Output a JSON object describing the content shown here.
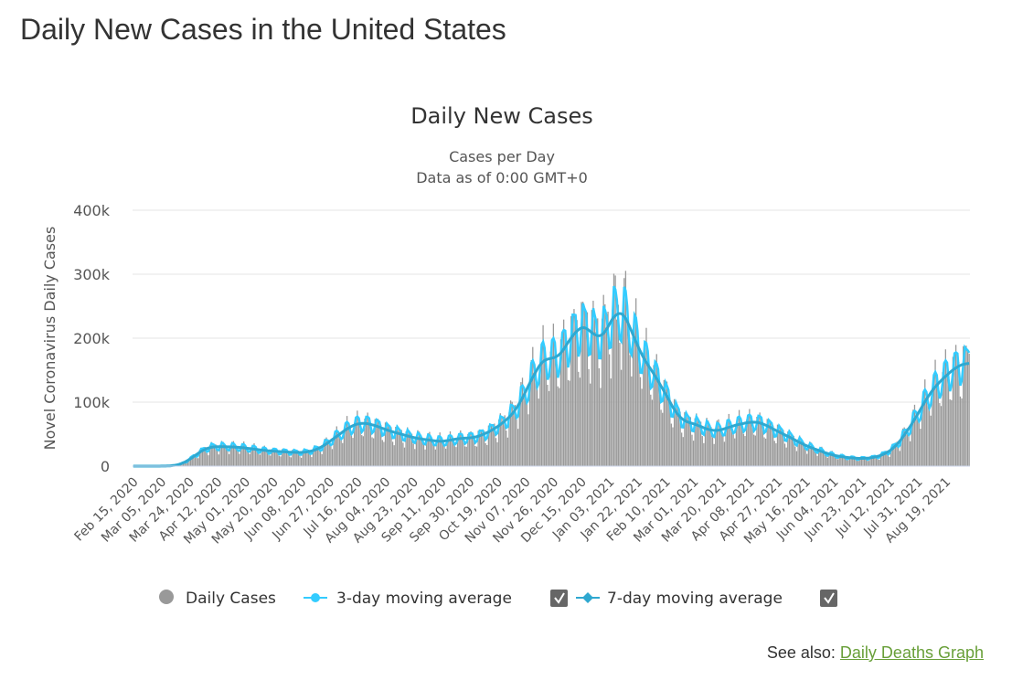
{
  "page": {
    "title": "Daily New Cases in the United States"
  },
  "see_also": {
    "label": "See also:",
    "link": "Daily Deaths Graph"
  },
  "chart_data": {
    "type": "bar",
    "title": "Daily New Cases",
    "subtitle": [
      "Cases per Day",
      "Data as of 0:00 GMT+0"
    ],
    "ylabel": "Novel Coronavirus Daily Cases",
    "xlabel": "",
    "ylim": [
      0,
      400000
    ],
    "yticks": [
      "0",
      "100k",
      "200k",
      "300k",
      "400k"
    ],
    "ytick_values": [
      0,
      100000,
      200000,
      300000,
      400000
    ],
    "xticks": [
      "Feb 15, 2020",
      "Mar 05, 2020",
      "Mar 24, 2020",
      "Apr 12, 2020",
      "May 01, 2020",
      "May 20, 2020",
      "Jun 08, 2020",
      "Jun 27, 2020",
      "Jul 16, 2020",
      "Aug 04, 2020",
      "Aug 23, 2020",
      "Sep 11, 2020",
      "Sep 30, 2020",
      "Oct 19, 2020",
      "Nov 07, 2020",
      "Nov 26, 2020",
      "Dec 15, 2020",
      "Jan 03, 2021",
      "Jan 22, 2021",
      "Feb 10, 2021",
      "Mar 01, 2021",
      "Mar 20, 2021",
      "Apr 08, 2021",
      "Apr 27, 2021",
      "May 16, 2021",
      "Jun 04, 2021",
      "Jun 23, 2021",
      "Jul 12, 2021",
      "Jul 31, 2021",
      "Aug 19, 2021"
    ],
    "x_range": [
      "2020-02-15",
      "2021-09-04"
    ],
    "grid": true,
    "legend_placement": "bottom",
    "weekly_7day_average": {
      "dates_start": "2020-02-15",
      "interval_days": 7,
      "values": [
        0,
        0,
        0,
        100,
        500,
        5000,
        17000,
        28000,
        31000,
        30000,
        30000,
        28000,
        26000,
        24000,
        23000,
        22000,
        21000,
        22000,
        27000,
        38000,
        50000,
        62000,
        68000,
        66000,
        60000,
        54000,
        50000,
        45000,
        42000,
        40000,
        38000,
        42000,
        44000,
        44000,
        50000,
        58000,
        70000,
        85000,
        115000,
        150000,
        172000,
        165000,
        190000,
        215000,
        220000,
        195000,
        215000,
        250000,
        225000,
        180000,
        155000,
        130000,
        100000,
        72000,
        68000,
        62000,
        55000,
        56000,
        63000,
        66000,
        70000,
        67000,
        58000,
        50000,
        42000,
        33000,
        27000,
        21000,
        16000,
        14000,
        12000,
        12000,
        14000,
        20000,
        32000,
        55000,
        80000,
        110000,
        130000,
        145000,
        158000,
        162000
      ]
    },
    "series": [
      {
        "name": "Daily Cases",
        "color": "#999999",
        "marker": "circle"
      },
      {
        "name": "3-day moving average",
        "color": "#33ccff",
        "checked": true
      },
      {
        "name": "7-day moving average",
        "color": "#2fa8d0",
        "checked": true
      }
    ]
  }
}
